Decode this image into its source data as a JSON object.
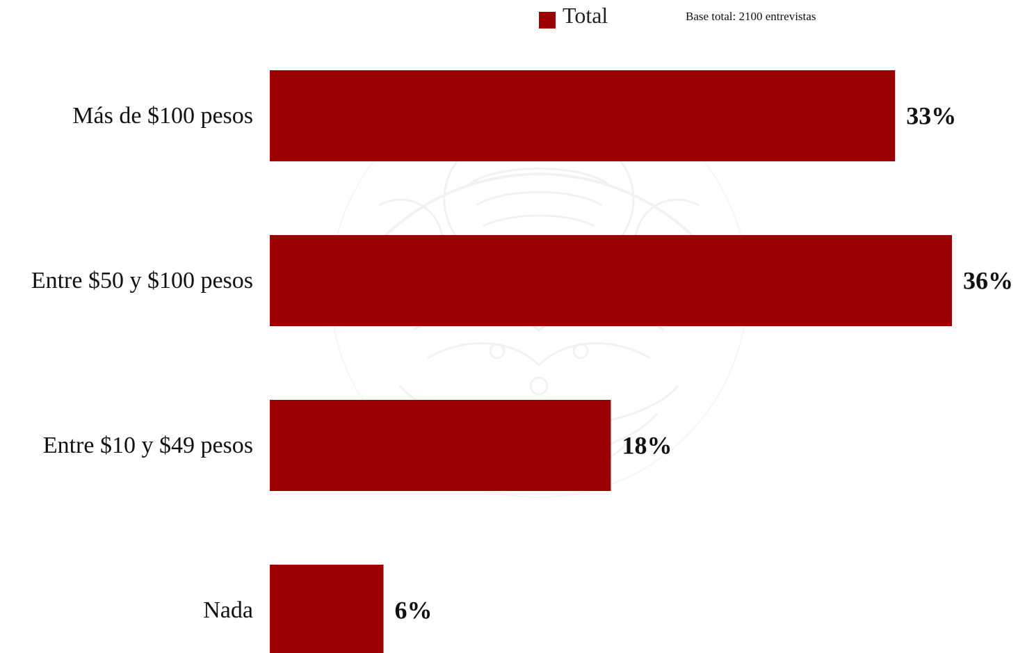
{
  "legend": {
    "label": "Total",
    "color": "#9b0000"
  },
  "base_note": "Base total: 2100 entrevistas",
  "chart_data": {
    "type": "bar",
    "orientation": "horizontal",
    "categories": [
      "Más de $100 pesos",
      "Entre $50 y $100 pesos",
      "Entre $10 y $49 pesos",
      "Nada"
    ],
    "series": [
      {
        "name": "Total",
        "color": "#9b0000",
        "values": [
          33,
          36,
          18,
          6
        ],
        "labels": [
          "33%",
          "36%",
          "18%",
          "6%"
        ]
      }
    ],
    "value_unit": "%",
    "xlim": [
      0,
      36
    ],
    "grid": false,
    "legend_position": "top"
  }
}
